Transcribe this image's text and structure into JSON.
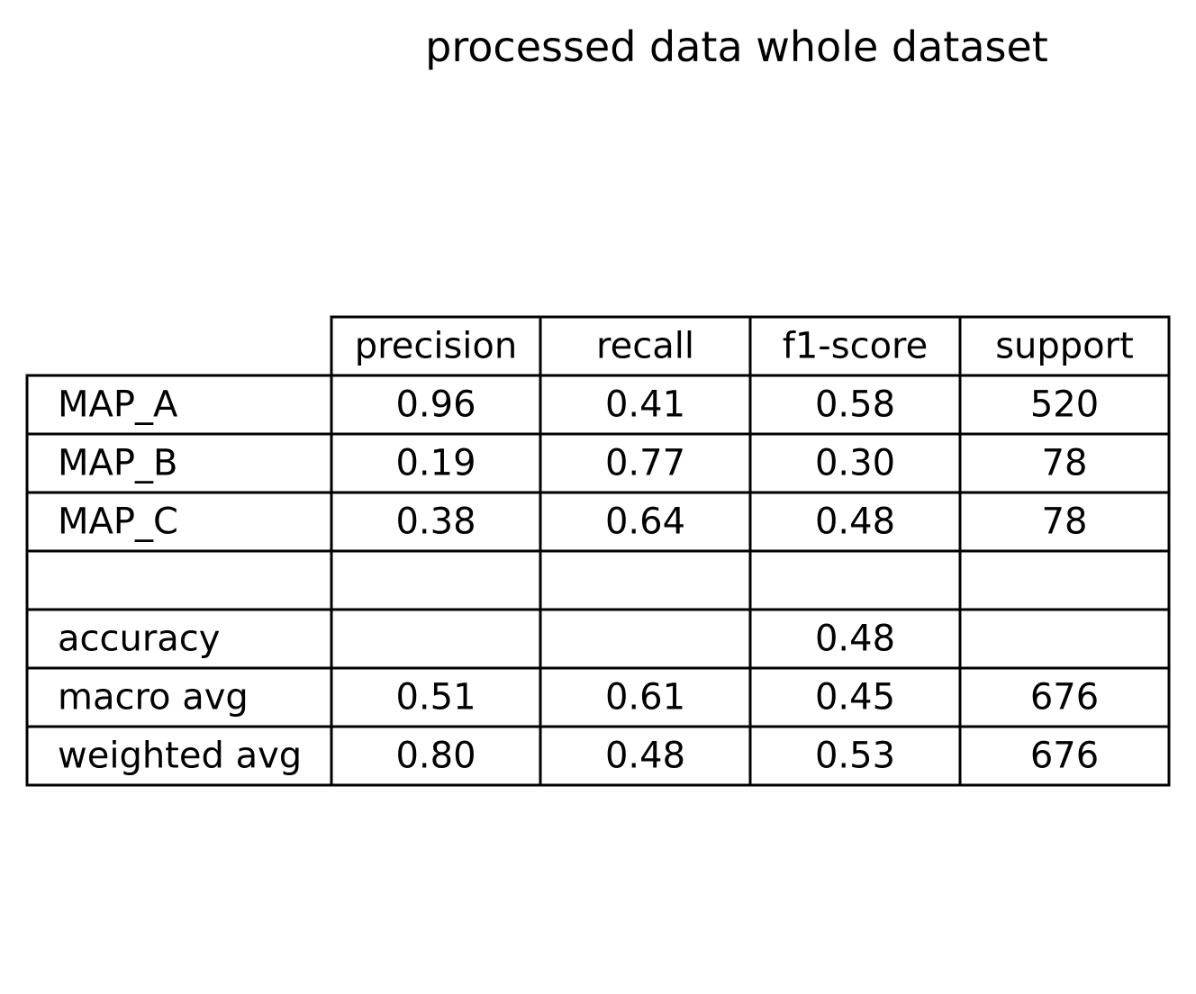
{
  "chart_data": {
    "type": "table",
    "title": "processed data whole dataset",
    "columns": [
      "precision",
      "recall",
      "f1-score",
      "support"
    ],
    "rows": [
      {
        "label": "MAP_A",
        "cells": [
          "0.96",
          "0.41",
          "0.58",
          "520"
        ]
      },
      {
        "label": "MAP_B",
        "cells": [
          "0.19",
          "0.77",
          "0.30",
          "78"
        ]
      },
      {
        "label": "MAP_C",
        "cells": [
          "0.38",
          "0.64",
          "0.48",
          "78"
        ]
      },
      {
        "label": "",
        "cells": [
          "",
          "",
          "",
          ""
        ]
      },
      {
        "label": "accuracy",
        "cells": [
          "",
          "",
          "0.48",
          ""
        ]
      },
      {
        "label": "macro avg",
        "cells": [
          "0.51",
          "0.61",
          "0.45",
          "676"
        ]
      },
      {
        "label": "weighted avg",
        "cells": [
          "0.80",
          "0.48",
          "0.53",
          "676"
        ]
      }
    ]
  }
}
